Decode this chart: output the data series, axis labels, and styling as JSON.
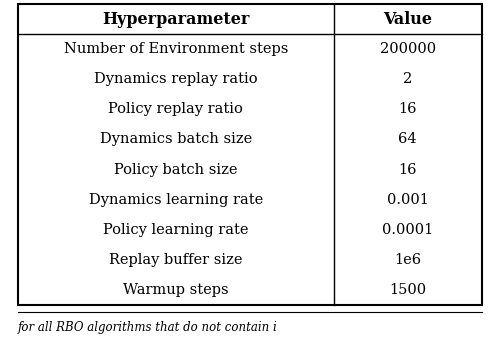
{
  "headers": [
    "Hyperparameter",
    "Value"
  ],
  "rows": [
    [
      "Number of Environment steps",
      "200000"
    ],
    [
      "Dynamics replay ratio",
      "2"
    ],
    [
      "Policy replay ratio",
      "16"
    ],
    [
      "Dynamics batch size",
      "64"
    ],
    [
      "Policy batch size",
      "16"
    ],
    [
      "Dynamics learning rate",
      "0.001"
    ],
    [
      "Policy learning rate",
      "0.0001"
    ],
    [
      "Replay buffer size",
      "1e6"
    ],
    [
      "Warmup steps",
      "1500"
    ]
  ],
  "footer_text": "for all RBO algorithms that do not contain i",
  "col_split": 0.68,
  "fig_width": 5.0,
  "fig_height": 3.44,
  "header_fontsize": 11.5,
  "body_fontsize": 10.5,
  "footer_fontsize": 8.5,
  "background_color": "#ffffff",
  "line_color": "#000000"
}
